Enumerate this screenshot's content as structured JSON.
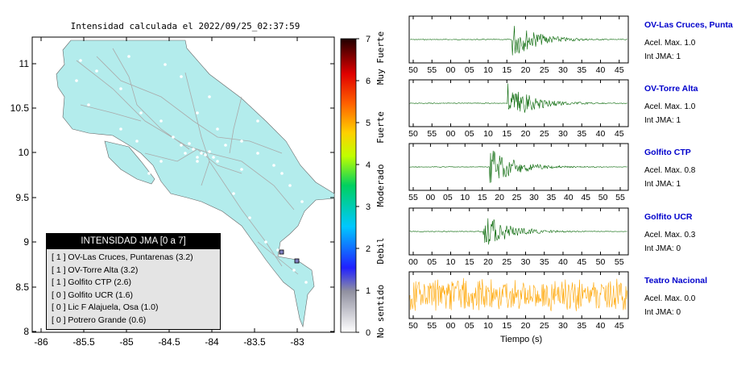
{
  "map": {
    "title": "Intensidad calculada el 2022/09/25_02:37:59",
    "y_ticks": [
      "11",
      "10.5",
      "10",
      "9.5",
      "9",
      "8.5",
      "8"
    ],
    "x_ticks": [
      "-86",
      "-85.5",
      "-85",
      "-84.5",
      "-84",
      "-83.5",
      "-83"
    ],
    "land_color": "#b3ecec"
  },
  "colorbar": {
    "ticks": [
      "0",
      "1",
      "2",
      "3",
      "4",
      "5",
      "6",
      "7"
    ],
    "labels": [
      "No sentido",
      "Debil",
      "Moderado",
      "Fuerte",
      "Muy Fuerte"
    ]
  },
  "legend": {
    "title": "INTENSIDAD JMA [0 a 7]",
    "items": [
      "[ 1 ]  OV-Las Cruces, Puntarenas (3.2)",
      "[ 1 ]  OV-Torre Alta (3.2)",
      "[ 1 ]  Golfito CTP (2.6)",
      "[ 0 ]  Golfito UCR (1.6)",
      "[ 0 ]  Lic F Alajuela, Osa (1.0)",
      "[ 0 ]  Potrero Grande (0.6)"
    ]
  },
  "stations": [
    {
      "name": "OV-Las Cruces, Puntar",
      "accel": "Acel. Max. 1.0",
      "jma": "Int JMA: 1",
      "ticks": [
        "50",
        "55",
        "00",
        "05",
        "10",
        "15",
        "20",
        "25",
        "30",
        "35",
        "40",
        "45"
      ],
      "color": "#006400"
    },
    {
      "name": "OV-Torre Alta",
      "accel": "Acel. Max. 1.0",
      "jma": "Int JMA: 1",
      "ticks": [
        "50",
        "55",
        "00",
        "05",
        "10",
        "15",
        "20",
        "25",
        "30",
        "35",
        "40",
        "45"
      ],
      "color": "#006400"
    },
    {
      "name": "Golfito CTP",
      "accel": "Acel. Max. 0.8",
      "jma": "Int JMA: 1",
      "ticks": [
        "55",
        "00",
        "05",
        "10",
        "15",
        "20",
        "25",
        "30",
        "35",
        "40",
        "45",
        "50",
        "55"
      ],
      "color": "#006400"
    },
    {
      "name": "Golfito UCR",
      "accel": "Acel. Max. 0.3",
      "jma": "Int JMA: 0",
      "ticks": [
        "00",
        "05",
        "10",
        "15",
        "20",
        "25",
        "30",
        "35",
        "40",
        "45",
        "50",
        "55"
      ],
      "color": "#006400"
    },
    {
      "name": "Teatro Nacional",
      "accel": "Acel. Max. 0.0",
      "jma": "Int JMA: 0",
      "ticks": [
        "50",
        "55",
        "00",
        "05",
        "10",
        "15",
        "20",
        "25",
        "30",
        "35",
        "40",
        "45"
      ],
      "color": "#ffa500"
    }
  ],
  "time_label": "Tiempo (s)"
}
